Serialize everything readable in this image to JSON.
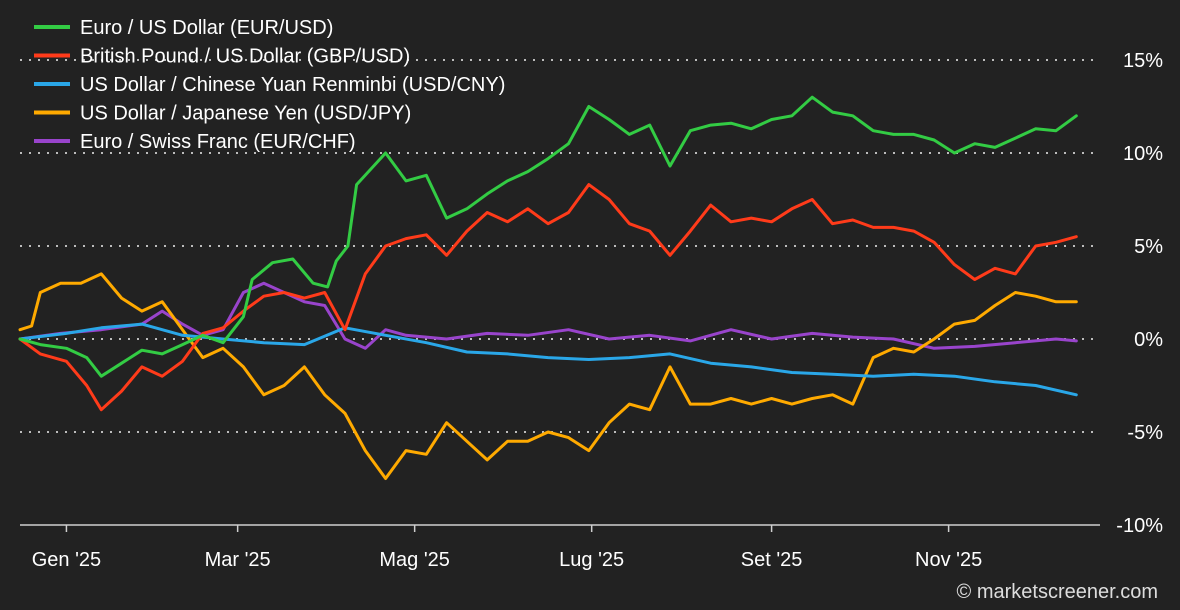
{
  "chart_data": {
    "type": "line",
    "ylim": [
      -10,
      15
    ],
    "y_ticks": [
      15,
      10,
      5,
      0,
      -5,
      -10
    ],
    "y_tick_labels": [
      "15%",
      "10%",
      "5%",
      "0%",
      "-5%",
      "-10%"
    ],
    "x_ticks": [
      {
        "date": "2025-01-01",
        "label": "Gen '25"
      },
      {
        "date": "2025-03-01",
        "label": "Mar '25"
      },
      {
        "date": "2025-05-01",
        "label": "Mag '25"
      },
      {
        "date": "2025-07-01",
        "label": "Lug '25"
      },
      {
        "date": "2025-09-01",
        "label": "Set '25"
      },
      {
        "date": "2025-11-01",
        "label": "Nov '25"
      }
    ],
    "grid": true,
    "legend_position": "top-left",
    "credit": "© marketscreener.com",
    "series": [
      {
        "name": "Euro / US Dollar (EUR/USD)",
        "color": "#33cc44",
        "points": [
          [
            "2024-12-16",
            0
          ],
          [
            "2024-12-23",
            -0.3
          ],
          [
            "2025-01-01",
            -0.5
          ],
          [
            "2025-01-08",
            -1.0
          ],
          [
            "2025-01-13",
            -2.0
          ],
          [
            "2025-01-20",
            -1.3
          ],
          [
            "2025-01-27",
            -0.6
          ],
          [
            "2025-02-03",
            -0.8
          ],
          [
            "2025-02-10",
            -0.3
          ],
          [
            "2025-02-17",
            0.2
          ],
          [
            "2025-02-24",
            -0.2
          ],
          [
            "2025-03-03",
            1.2
          ],
          [
            "2025-03-06",
            3.2
          ],
          [
            "2025-03-13",
            4.1
          ],
          [
            "2025-03-20",
            4.3
          ],
          [
            "2025-03-27",
            3.0
          ],
          [
            "2025-04-01",
            2.8
          ],
          [
            "2025-04-04",
            4.2
          ],
          [
            "2025-04-08",
            5.0
          ],
          [
            "2025-04-11",
            8.3
          ],
          [
            "2025-04-21",
            10.0
          ],
          [
            "2025-04-28",
            8.5
          ],
          [
            "2025-05-05",
            8.8
          ],
          [
            "2025-05-12",
            6.5
          ],
          [
            "2025-05-19",
            7.0
          ],
          [
            "2025-05-26",
            7.8
          ],
          [
            "2025-06-02",
            8.5
          ],
          [
            "2025-06-09",
            9.0
          ],
          [
            "2025-06-16",
            9.7
          ],
          [
            "2025-06-23",
            10.5
          ],
          [
            "2025-06-30",
            12.5
          ],
          [
            "2025-07-07",
            11.8
          ],
          [
            "2025-07-14",
            11.0
          ],
          [
            "2025-07-21",
            11.5
          ],
          [
            "2025-07-28",
            9.3
          ],
          [
            "2025-08-04",
            11.2
          ],
          [
            "2025-08-11",
            11.5
          ],
          [
            "2025-08-18",
            11.6
          ],
          [
            "2025-08-25",
            11.3
          ],
          [
            "2025-09-01",
            11.8
          ],
          [
            "2025-09-08",
            12.0
          ],
          [
            "2025-09-15",
            13.0
          ],
          [
            "2025-09-22",
            12.2
          ],
          [
            "2025-09-29",
            12.0
          ],
          [
            "2025-10-06",
            11.2
          ],
          [
            "2025-10-13",
            11.0
          ],
          [
            "2025-10-20",
            11.0
          ],
          [
            "2025-10-27",
            10.7
          ],
          [
            "2025-11-03",
            10.0
          ],
          [
            "2025-11-10",
            10.5
          ],
          [
            "2025-11-17",
            10.3
          ],
          [
            "2025-11-24",
            10.8
          ],
          [
            "2025-12-01",
            11.3
          ],
          [
            "2025-12-08",
            11.2
          ],
          [
            "2025-12-15",
            12.0
          ]
        ]
      },
      {
        "name": "British Pound / US Dollar (GBP/USD)",
        "color": "#ff3b1a",
        "points": [
          [
            "2024-12-16",
            0
          ],
          [
            "2024-12-23",
            -0.8
          ],
          [
            "2025-01-01",
            -1.2
          ],
          [
            "2025-01-08",
            -2.5
          ],
          [
            "2025-01-13",
            -3.8
          ],
          [
            "2025-01-20",
            -2.8
          ],
          [
            "2025-01-27",
            -1.5
          ],
          [
            "2025-02-03",
            -2.0
          ],
          [
            "2025-02-10",
            -1.2
          ],
          [
            "2025-02-17",
            0.3
          ],
          [
            "2025-02-24",
            0.6
          ],
          [
            "2025-03-03",
            1.5
          ],
          [
            "2025-03-10",
            2.3
          ],
          [
            "2025-03-17",
            2.5
          ],
          [
            "2025-03-24",
            2.2
          ],
          [
            "2025-03-31",
            2.5
          ],
          [
            "2025-04-07",
            0.5
          ],
          [
            "2025-04-14",
            3.5
          ],
          [
            "2025-04-21",
            5.0
          ],
          [
            "2025-04-28",
            5.4
          ],
          [
            "2025-05-05",
            5.6
          ],
          [
            "2025-05-12",
            4.5
          ],
          [
            "2025-05-19",
            5.8
          ],
          [
            "2025-05-26",
            6.8
          ],
          [
            "2025-06-02",
            6.3
          ],
          [
            "2025-06-09",
            7.0
          ],
          [
            "2025-06-16",
            6.2
          ],
          [
            "2025-06-23",
            6.8
          ],
          [
            "2025-06-30",
            8.3
          ],
          [
            "2025-07-07",
            7.5
          ],
          [
            "2025-07-14",
            6.2
          ],
          [
            "2025-07-21",
            5.8
          ],
          [
            "2025-07-28",
            4.5
          ],
          [
            "2025-08-04",
            5.8
          ],
          [
            "2025-08-11",
            7.2
          ],
          [
            "2025-08-18",
            6.3
          ],
          [
            "2025-08-25",
            6.5
          ],
          [
            "2025-09-01",
            6.3
          ],
          [
            "2025-09-08",
            7.0
          ],
          [
            "2025-09-15",
            7.5
          ],
          [
            "2025-09-22",
            6.2
          ],
          [
            "2025-09-29",
            6.4
          ],
          [
            "2025-10-06",
            6.0
          ],
          [
            "2025-10-13",
            6.0
          ],
          [
            "2025-10-20",
            5.8
          ],
          [
            "2025-10-27",
            5.2
          ],
          [
            "2025-11-03",
            4.0
          ],
          [
            "2025-11-10",
            3.2
          ],
          [
            "2025-11-17",
            3.8
          ],
          [
            "2025-11-24",
            3.5
          ],
          [
            "2025-12-01",
            5.0
          ],
          [
            "2025-12-08",
            5.2
          ],
          [
            "2025-12-15",
            5.5
          ]
        ]
      },
      {
        "name": "US Dollar / Chinese Yuan Renminbi (USD/CNY)",
        "color": "#2aa7e8",
        "points": [
          [
            "2024-12-16",
            0
          ],
          [
            "2025-01-01",
            0.3
          ],
          [
            "2025-01-13",
            0.6
          ],
          [
            "2025-01-27",
            0.8
          ],
          [
            "2025-02-10",
            0.2
          ],
          [
            "2025-02-24",
            0.0
          ],
          [
            "2025-03-10",
            -0.2
          ],
          [
            "2025-03-24",
            -0.3
          ],
          [
            "2025-04-07",
            0.6
          ],
          [
            "2025-04-21",
            0.2
          ],
          [
            "2025-05-05",
            -0.2
          ],
          [
            "2025-05-19",
            -0.7
          ],
          [
            "2025-06-02",
            -0.8
          ],
          [
            "2025-06-16",
            -1.0
          ],
          [
            "2025-06-30",
            -1.1
          ],
          [
            "2025-07-14",
            -1.0
          ],
          [
            "2025-07-28",
            -0.8
          ],
          [
            "2025-08-11",
            -1.3
          ],
          [
            "2025-08-25",
            -1.5
          ],
          [
            "2025-09-08",
            -1.8
          ],
          [
            "2025-09-22",
            -1.9
          ],
          [
            "2025-10-06",
            -2.0
          ],
          [
            "2025-10-20",
            -1.9
          ],
          [
            "2025-11-03",
            -2.0
          ],
          [
            "2025-11-17",
            -2.3
          ],
          [
            "2025-12-01",
            -2.5
          ],
          [
            "2025-12-15",
            -3.0
          ]
        ]
      },
      {
        "name": "US Dollar / Japanese Yen (USD/JPY)",
        "color": "#ffaa00",
        "points": [
          [
            "2024-12-16",
            0.5
          ],
          [
            "2024-12-20",
            0.7
          ],
          [
            "2024-12-23",
            2.5
          ],
          [
            "2024-12-30",
            3.0
          ],
          [
            "2025-01-06",
            3.0
          ],
          [
            "2025-01-13",
            3.5
          ],
          [
            "2025-01-20",
            2.2
          ],
          [
            "2025-01-27",
            1.5
          ],
          [
            "2025-02-03",
            2.0
          ],
          [
            "2025-02-10",
            0.5
          ],
          [
            "2025-02-17",
            -1.0
          ],
          [
            "2025-02-24",
            -0.5
          ],
          [
            "2025-03-03",
            -1.5
          ],
          [
            "2025-03-10",
            -3.0
          ],
          [
            "2025-03-17",
            -2.5
          ],
          [
            "2025-03-24",
            -1.5
          ],
          [
            "2025-03-31",
            -3.0
          ],
          [
            "2025-04-07",
            -4.0
          ],
          [
            "2025-04-14",
            -6.0
          ],
          [
            "2025-04-21",
            -7.5
          ],
          [
            "2025-04-28",
            -6.0
          ],
          [
            "2025-05-05",
            -6.2
          ],
          [
            "2025-05-12",
            -4.5
          ],
          [
            "2025-05-19",
            -5.5
          ],
          [
            "2025-05-26",
            -6.5
          ],
          [
            "2025-06-02",
            -5.5
          ],
          [
            "2025-06-09",
            -5.5
          ],
          [
            "2025-06-16",
            -5.0
          ],
          [
            "2025-06-23",
            -5.3
          ],
          [
            "2025-06-30",
            -6.0
          ],
          [
            "2025-07-07",
            -4.5
          ],
          [
            "2025-07-14",
            -3.5
          ],
          [
            "2025-07-21",
            -3.8
          ],
          [
            "2025-07-28",
            -1.5
          ],
          [
            "2025-08-04",
            -3.5
          ],
          [
            "2025-08-11",
            -3.5
          ],
          [
            "2025-08-18",
            -3.2
          ],
          [
            "2025-08-25",
            -3.5
          ],
          [
            "2025-09-01",
            -3.2
          ],
          [
            "2025-09-08",
            -3.5
          ],
          [
            "2025-09-15",
            -3.2
          ],
          [
            "2025-09-22",
            -3.0
          ],
          [
            "2025-09-29",
            -3.5
          ],
          [
            "2025-10-06",
            -1.0
          ],
          [
            "2025-10-13",
            -0.5
          ],
          [
            "2025-10-20",
            -0.7
          ],
          [
            "2025-10-27",
            0.0
          ],
          [
            "2025-11-03",
            0.8
          ],
          [
            "2025-11-10",
            1.0
          ],
          [
            "2025-11-17",
            1.8
          ],
          [
            "2025-11-24",
            2.5
          ],
          [
            "2025-12-01",
            2.3
          ],
          [
            "2025-12-08",
            2.0
          ],
          [
            "2025-12-15",
            2.0
          ]
        ]
      },
      {
        "name": "Euro / Swiss Franc (EUR/CHF)",
        "color": "#9944cc",
        "points": [
          [
            "2024-12-16",
            0
          ],
          [
            "2024-12-30",
            0.3
          ],
          [
            "2025-01-13",
            0.5
          ],
          [
            "2025-01-27",
            0.8
          ],
          [
            "2025-02-03",
            1.5
          ],
          [
            "2025-02-10",
            0.8
          ],
          [
            "2025-02-17",
            0.2
          ],
          [
            "2025-02-24",
            0.5
          ],
          [
            "2025-03-03",
            2.5
          ],
          [
            "2025-03-10",
            3.0
          ],
          [
            "2025-03-17",
            2.5
          ],
          [
            "2025-03-24",
            2.0
          ],
          [
            "2025-03-31",
            1.8
          ],
          [
            "2025-04-07",
            0.0
          ],
          [
            "2025-04-14",
            -0.5
          ],
          [
            "2025-04-21",
            0.5
          ],
          [
            "2025-04-28",
            0.2
          ],
          [
            "2025-05-12",
            0.0
          ],
          [
            "2025-05-26",
            0.3
          ],
          [
            "2025-06-09",
            0.2
          ],
          [
            "2025-06-23",
            0.5
          ],
          [
            "2025-07-07",
            0.0
          ],
          [
            "2025-07-21",
            0.2
          ],
          [
            "2025-08-04",
            -0.1
          ],
          [
            "2025-08-18",
            0.5
          ],
          [
            "2025-09-01",
            0.0
          ],
          [
            "2025-09-15",
            0.3
          ],
          [
            "2025-09-29",
            0.1
          ],
          [
            "2025-10-13",
            0.0
          ],
          [
            "2025-10-27",
            -0.5
          ],
          [
            "2025-11-10",
            -0.4
          ],
          [
            "2025-11-24",
            -0.2
          ],
          [
            "2025-12-08",
            0.0
          ],
          [
            "2025-12-15",
            -0.1
          ]
        ]
      }
    ]
  }
}
